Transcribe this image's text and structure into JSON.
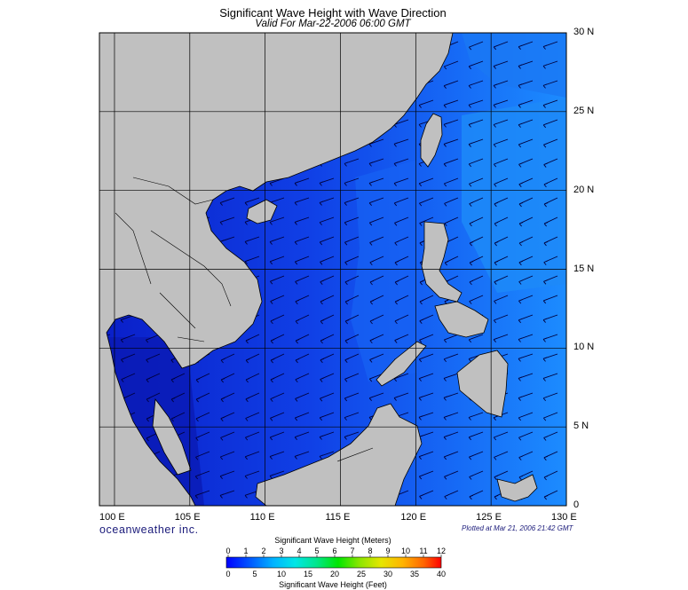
{
  "title": "Significant Wave Height with Wave Direction",
  "subtitle": "Valid For Mar-22-2006 06:00 GMT",
  "lat_labels": [
    "30 N",
    "25 N",
    "20 N",
    "15 N",
    "10 N",
    "5 N",
    "0"
  ],
  "lon_labels": [
    "100 E",
    "105 E",
    "110 E",
    "115 E",
    "120 E",
    "125 E",
    "130 E"
  ],
  "brand": "oceanweather inc.",
  "plotted": "Plotted at Mar 21, 2006 21:42 GMT",
  "colorbar": {
    "meters_title": "Significant Wave Height (Meters)",
    "feet_title": "Significant Wave Height (Feet)",
    "meters_ticks": [
      "0",
      "1",
      "2",
      "3",
      "4",
      "5",
      "6",
      "7",
      "8",
      "9",
      "10",
      "11",
      "12"
    ],
    "feet_ticks": [
      "0",
      "5",
      "10",
      "15",
      "20",
      "25",
      "30",
      "35",
      "40"
    ]
  },
  "colors": {
    "land": "#c0c0c0",
    "sea_low": "#0000c8",
    "sea_mid": "#0f50f0",
    "sea_high": "#1e8cff",
    "grid": "#000000"
  },
  "map_extent": {
    "lon_min": 99,
    "lon_max": 130,
    "lat_min": 0,
    "lat_max": 30
  }
}
